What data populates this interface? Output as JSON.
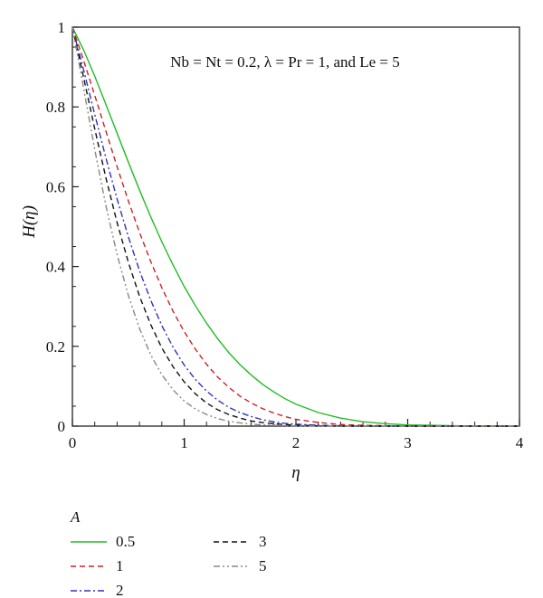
{
  "chart_data": {
    "type": "line",
    "title": "",
    "xlabel": "η",
    "ylabel": "H(η)",
    "xlim": [
      0,
      4
    ],
    "ylim": [
      0,
      1
    ],
    "xticks": [
      "0",
      "1",
      "2",
      "3",
      "4"
    ],
    "yticks": [
      "0",
      "0.2",
      "0.4",
      "0.6",
      "0.8",
      "1"
    ],
    "annotation": "Nb = Nt = 0.2, λ = Pr = 1, and Le = 5",
    "legend_title": "A",
    "grid": false,
    "legend_position": "bottom-left, below plot",
    "x": [
      0,
      0.1,
      0.2,
      0.3,
      0.4,
      0.5,
      0.6,
      0.7,
      0.8,
      0.9,
      1.0,
      1.1,
      1.2,
      1.3,
      1.4,
      1.5,
      1.6,
      1.7,
      1.8,
      1.9,
      2.0,
      2.2,
      2.4,
      2.6,
      2.8,
      3.0,
      3.2,
      3.4,
      3.6,
      3.8,
      4.0
    ],
    "series": [
      {
        "name": "0.5",
        "color": "#22bb22",
        "dash": "solid",
        "values": [
          1.0,
          0.943,
          0.877,
          0.806,
          0.734,
          0.662,
          0.592,
          0.525,
          0.462,
          0.404,
          0.35,
          0.302,
          0.258,
          0.219,
          0.184,
          0.154,
          0.128,
          0.105,
          0.086,
          0.069,
          0.055,
          0.034,
          0.02,
          0.011,
          0.006,
          0.003,
          0.002,
          0.001,
          0.0,
          0.0,
          0.0
        ]
      },
      {
        "name": "1",
        "color": "#cc2222",
        "dash": "dashed",
        "values": [
          1.0,
          0.917,
          0.829,
          0.739,
          0.65,
          0.565,
          0.486,
          0.413,
          0.347,
          0.288,
          0.237,
          0.193,
          0.155,
          0.123,
          0.097,
          0.075,
          0.058,
          0.044,
          0.033,
          0.024,
          0.017,
          0.009,
          0.004,
          0.002,
          0.001,
          0.0,
          0.0,
          0.0,
          0.0,
          0.0,
          0.0
        ]
      },
      {
        "name": "2",
        "color": "#3333bb",
        "dash": "dashdot",
        "values": [
          1.0,
          0.893,
          0.781,
          0.672,
          0.569,
          0.475,
          0.39,
          0.316,
          0.252,
          0.198,
          0.153,
          0.117,
          0.088,
          0.065,
          0.047,
          0.034,
          0.024,
          0.016,
          0.011,
          0.007,
          0.005,
          0.002,
          0.001,
          0.0,
          0.0,
          0.0,
          0.0,
          0.0,
          0.0,
          0.0,
          0.0
        ]
      },
      {
        "name": "3",
        "color": "#111111",
        "dash": "dashed",
        "values": [
          1.0,
          0.874,
          0.745,
          0.622,
          0.51,
          0.411,
          0.326,
          0.255,
          0.196,
          0.149,
          0.111,
          0.081,
          0.058,
          0.041,
          0.029,
          0.02,
          0.013,
          0.009,
          0.006,
          0.004,
          0.002,
          0.001,
          0.0,
          0.0,
          0.0,
          0.0,
          0.0,
          0.0,
          0.0,
          0.0,
          0.0
        ]
      },
      {
        "name": "5",
        "color": "#888888",
        "dash": "dashdotdot",
        "values": [
          1.0,
          0.847,
          0.693,
          0.552,
          0.43,
          0.328,
          0.245,
          0.179,
          0.129,
          0.091,
          0.063,
          0.043,
          0.029,
          0.019,
          0.012,
          0.008,
          0.005,
          0.003,
          0.002,
          0.001,
          0.001,
          0.0,
          0.0,
          0.0,
          0.0,
          0.0,
          0.0,
          0.0,
          0.0,
          0.0,
          0.0
        ]
      }
    ]
  }
}
